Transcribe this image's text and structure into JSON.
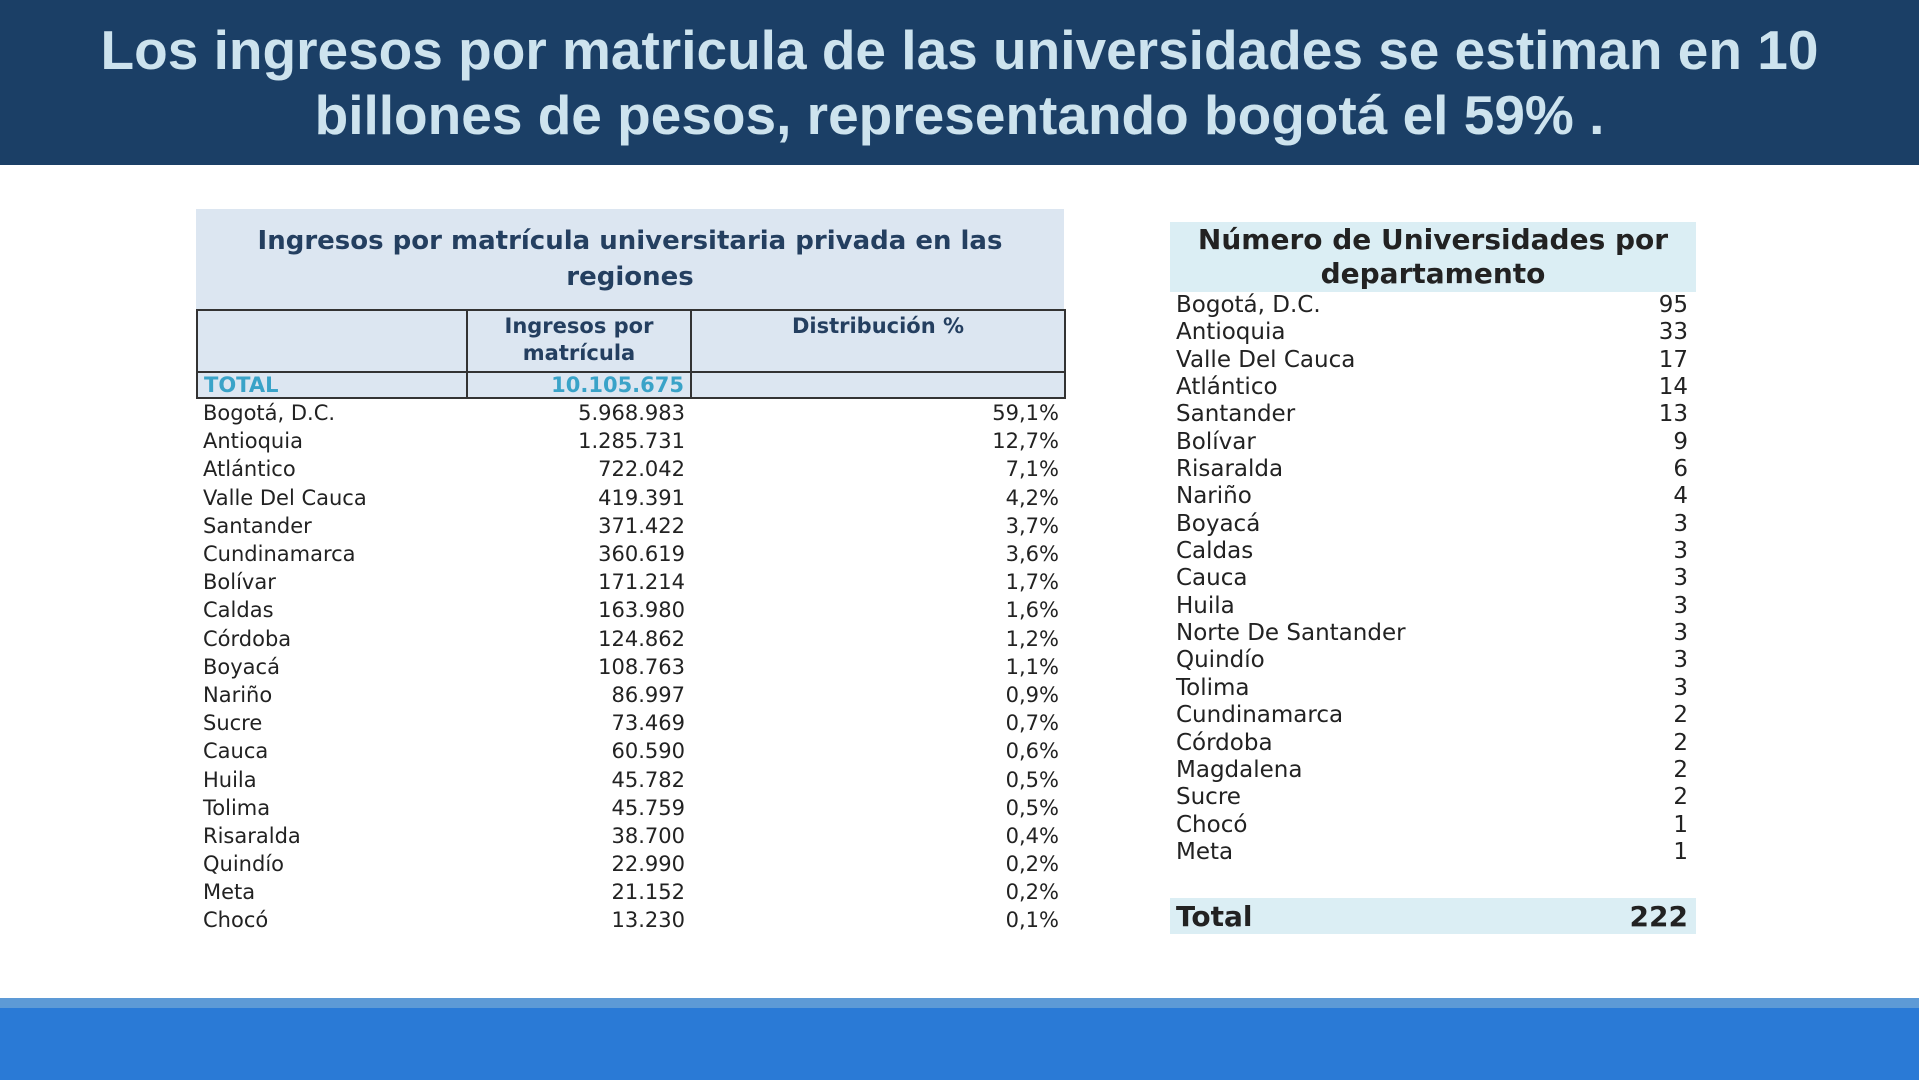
{
  "title": "Los ingresos por matricula de las universidades se estiman en 10 billones de pesos, representando bogotá el 59% .",
  "left_table": {
    "heading": "Ingresos  por matrícula universitaria privada en las regiones",
    "columns": [
      "",
      "Ingresos por matrícula",
      "Distribución %"
    ],
    "total": {
      "label": "TOTAL",
      "value": "10.105.675",
      "pct": ""
    },
    "rows": [
      {
        "region": "Bogotá, D.C.",
        "value": "5.968.983",
        "pct": "59,1%"
      },
      {
        "region": "Antioquia",
        "value": "1.285.731",
        "pct": "12,7%"
      },
      {
        "region": "Atlántico",
        "value": "722.042",
        "pct": "7,1%"
      },
      {
        "region": "Valle Del Cauca",
        "value": "419.391",
        "pct": "4,2%"
      },
      {
        "region": "Santander",
        "value": "371.422",
        "pct": "3,7%"
      },
      {
        "region": "Cundinamarca",
        "value": "360.619",
        "pct": "3,6%"
      },
      {
        "region": "Bolívar",
        "value": "171.214",
        "pct": "1,7%"
      },
      {
        "region": "Caldas",
        "value": "163.980",
        "pct": "1,6%"
      },
      {
        "region": "Córdoba",
        "value": "124.862",
        "pct": "1,2%"
      },
      {
        "region": "Boyacá",
        "value": "108.763",
        "pct": "1,1%"
      },
      {
        "region": "Nariño",
        "value": "86.997",
        "pct": "0,9%"
      },
      {
        "region": "Sucre",
        "value": "73.469",
        "pct": "0,7%"
      },
      {
        "region": "Cauca",
        "value": "60.590",
        "pct": "0,6%"
      },
      {
        "region": "Huila",
        "value": "45.782",
        "pct": "0,5%"
      },
      {
        "region": "Tolima",
        "value": "45.759",
        "pct": "0,5%"
      },
      {
        "region": "Risaralda",
        "value": "38.700",
        "pct": "0,4%"
      },
      {
        "region": "Quindío",
        "value": "22.990",
        "pct": "0,2%"
      },
      {
        "region": "Meta",
        "value": "21.152",
        "pct": "0,2%"
      },
      {
        "region": "Chocó",
        "value": "13.230",
        "pct": "0,1%"
      }
    ]
  },
  "right_table": {
    "heading": "Número de Universidades por departamento",
    "rows": [
      {
        "dept": "Bogotá, D.C.",
        "count": "95"
      },
      {
        "dept": "Antioquia",
        "count": "33"
      },
      {
        "dept": "Valle Del Cauca",
        "count": "17"
      },
      {
        "dept": "Atlántico",
        "count": "14"
      },
      {
        "dept": "Santander",
        "count": "13"
      },
      {
        "dept": "Bolívar",
        "count": "9"
      },
      {
        "dept": "Risaralda",
        "count": "6"
      },
      {
        "dept": "Nariño",
        "count": "4"
      },
      {
        "dept": "Boyacá",
        "count": "3"
      },
      {
        "dept": "Caldas",
        "count": "3"
      },
      {
        "dept": "Cauca",
        "count": "3"
      },
      {
        "dept": "Huila",
        "count": "3"
      },
      {
        "dept": "Norte De Santander",
        "count": "3"
      },
      {
        "dept": "Quindío",
        "count": "3"
      },
      {
        "dept": "Tolima",
        "count": "3"
      },
      {
        "dept": "Cundinamarca",
        "count": "2"
      },
      {
        "dept": "Córdoba",
        "count": "2"
      },
      {
        "dept": "Magdalena",
        "count": "2"
      },
      {
        "dept": "Sucre",
        "count": "2"
      },
      {
        "dept": "Chocó",
        "count": "1"
      },
      {
        "dept": "Meta",
        "count": "1"
      }
    ],
    "total": {
      "label": "Total",
      "count": "222"
    }
  },
  "colors": {
    "title_bg": "#1b3f66",
    "title_text": "#cde3ee",
    "header_fill": "#dce6f1",
    "total_text": "#3aa3c8",
    "footer": "#2a7ad6"
  }
}
